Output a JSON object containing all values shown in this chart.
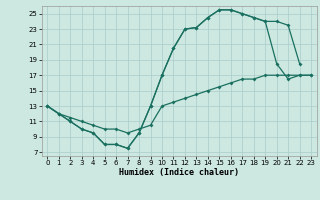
{
  "xlabel": "Humidex (Indice chaleur)",
  "bg_color": "#cce8e0",
  "grid_color": "#aacccc",
  "line_color": "#1a7060",
  "xlim": [
    -0.5,
    23.5
  ],
  "ylim": [
    6.5,
    26.0
  ],
  "xticks": [
    0,
    1,
    2,
    3,
    4,
    5,
    6,
    7,
    8,
    9,
    10,
    11,
    12,
    13,
    14,
    15,
    16,
    17,
    18,
    19,
    20,
    21,
    22,
    23
  ],
  "yticks": [
    7,
    9,
    11,
    13,
    15,
    17,
    19,
    21,
    23,
    25
  ],
  "line1_x": [
    0,
    1,
    2,
    3,
    4,
    5,
    6,
    7,
    8,
    9,
    10,
    11,
    12,
    13,
    14,
    15,
    16,
    17,
    18,
    19,
    20,
    21,
    22,
    23
  ],
  "line1_y": [
    13,
    12,
    11,
    10,
    9.5,
    8,
    8,
    7.5,
    9.5,
    13,
    17,
    20.5,
    23,
    23.2,
    24.5,
    25.5,
    25.5,
    25,
    24.5,
    24,
    18.5,
    16.5,
    17,
    17
  ],
  "line2_x": [
    0,
    1,
    2,
    3,
    4,
    5,
    6,
    7,
    8,
    9,
    10,
    11,
    12,
    13,
    14,
    15,
    16,
    17,
    18,
    19,
    20,
    21,
    22
  ],
  "line2_y": [
    13,
    12,
    11,
    10,
    9.5,
    8,
    8,
    7.5,
    9.5,
    13,
    17,
    20.5,
    23,
    23.2,
    24.5,
    25.5,
    25.5,
    25,
    24.5,
    24,
    24,
    23.5,
    18.5
  ],
  "line3_x": [
    0,
    1,
    2,
    3,
    4,
    5,
    6,
    7,
    8,
    9,
    10,
    11,
    12,
    13,
    14,
    15,
    16,
    17,
    18,
    19,
    20,
    21,
    22,
    23
  ],
  "line3_y": [
    13,
    12,
    11.5,
    11,
    10.5,
    10,
    10,
    9.5,
    10,
    10.5,
    13,
    13.5,
    14,
    14.5,
    15,
    15.5,
    16,
    16.5,
    16.5,
    17,
    17,
    17,
    17,
    17
  ]
}
